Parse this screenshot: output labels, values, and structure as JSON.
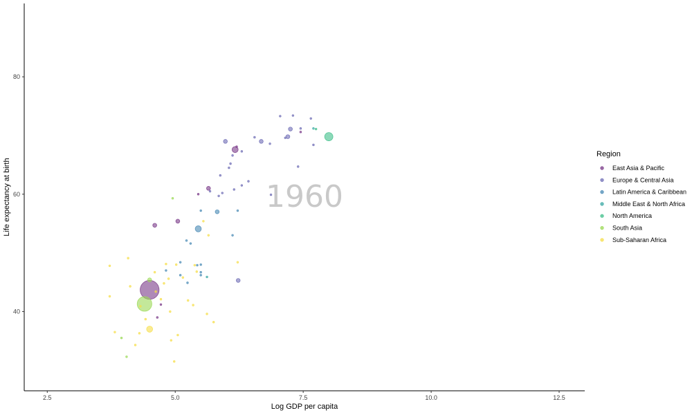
{
  "chart_data": {
    "type": "scatter",
    "title": "",
    "xlabel": "Log GDP per capita",
    "ylabel": "Life expectancy at birth",
    "annotation": "1960",
    "xlim": [
      2.05,
      13.0
    ],
    "ylim": [
      26.5,
      92.5
    ],
    "x_ticks": [
      2.5,
      5.0,
      7.5,
      10.0,
      12.5
    ],
    "x_tick_labels": [
      "2.5",
      "5.0",
      "7.5",
      "10.0",
      "12.5"
    ],
    "y_ticks": [
      40,
      60,
      80
    ],
    "y_tick_labels": [
      "40",
      "60",
      "80"
    ],
    "grid": false,
    "legend_title": "Region",
    "legend_position": "right",
    "series": [
      {
        "name": "East Asia & Pacific",
        "color": "#7a3a88",
        "points": [
          {
            "x": 4.5,
            "y": 43.7,
            "size": 9
          },
          {
            "x": 4.6,
            "y": 54.7,
            "size": 2
          },
          {
            "x": 5.05,
            "y": 55.4,
            "size": 2
          },
          {
            "x": 6.17,
            "y": 67.6,
            "size": 3
          },
          {
            "x": 5.65,
            "y": 61.0,
            "size": 2
          },
          {
            "x": 5.45,
            "y": 60.0,
            "size": 1
          },
          {
            "x": 7.45,
            "y": 70.6,
            "size": 1
          },
          {
            "x": 4.65,
            "y": 39.0,
            "size": 1
          },
          {
            "x": 4.72,
            "y": 41.2,
            "size": 1
          },
          {
            "x": 6.2,
            "y": 68.1,
            "size": 1
          }
        ]
      },
      {
        "name": "Europe & Central Asia",
        "color": "#6f6db5",
        "points": [
          {
            "x": 5.98,
            "y": 69.0,
            "size": 2
          },
          {
            "x": 6.68,
            "y": 69.0,
            "size": 2
          },
          {
            "x": 6.85,
            "y": 68.6,
            "size": 1
          },
          {
            "x": 7.2,
            "y": 69.8,
            "size": 2
          },
          {
            "x": 7.25,
            "y": 71.1,
            "size": 2
          },
          {
            "x": 7.05,
            "y": 73.3,
            "size": 1
          },
          {
            "x": 7.65,
            "y": 72.9,
            "size": 1
          },
          {
            "x": 7.3,
            "y": 73.4,
            "size": 1
          },
          {
            "x": 7.45,
            "y": 71.2,
            "size": 1
          },
          {
            "x": 6.55,
            "y": 69.7,
            "size": 1
          },
          {
            "x": 7.15,
            "y": 69.6,
            "size": 1
          },
          {
            "x": 6.3,
            "y": 67.3,
            "size": 1
          },
          {
            "x": 6.12,
            "y": 66.6,
            "size": 1
          },
          {
            "x": 6.08,
            "y": 65.2,
            "size": 1
          },
          {
            "x": 6.05,
            "y": 64.5,
            "size": 1
          },
          {
            "x": 5.88,
            "y": 63.2,
            "size": 1
          },
          {
            "x": 5.92,
            "y": 60.2,
            "size": 1
          },
          {
            "x": 5.85,
            "y": 59.7,
            "size": 1
          },
          {
            "x": 6.87,
            "y": 59.9,
            "size": 1
          },
          {
            "x": 6.43,
            "y": 62.2,
            "size": 1
          },
          {
            "x": 7.4,
            "y": 64.7,
            "size": 1
          },
          {
            "x": 7.7,
            "y": 68.4,
            "size": 1
          },
          {
            "x": 6.15,
            "y": 60.8,
            "size": 1
          },
          {
            "x": 5.68,
            "y": 60.5,
            "size": 1
          },
          {
            "x": 6.23,
            "y": 45.3,
            "size": 2
          },
          {
            "x": 6.3,
            "y": 61.5,
            "size": 1
          }
        ]
      },
      {
        "name": "Latin America & Caribbean",
        "color": "#4a8bb5",
        "points": [
          {
            "x": 5.45,
            "y": 54.1,
            "size": 3
          },
          {
            "x": 5.82,
            "y": 57.0,
            "size": 2
          },
          {
            "x": 5.5,
            "y": 57.2,
            "size": 1
          },
          {
            "x": 6.22,
            "y": 57.2,
            "size": 1
          },
          {
            "x": 6.12,
            "y": 53.0,
            "size": 1
          },
          {
            "x": 5.1,
            "y": 48.4,
            "size": 1
          },
          {
            "x": 5.5,
            "y": 48.0,
            "size": 1
          },
          {
            "x": 5.43,
            "y": 47.9,
            "size": 1
          },
          {
            "x": 5.5,
            "y": 46.7,
            "size": 1
          },
          {
            "x": 5.5,
            "y": 46.2,
            "size": 1
          },
          {
            "x": 5.24,
            "y": 44.9,
            "size": 1
          },
          {
            "x": 5.1,
            "y": 46.2,
            "size": 1
          },
          {
            "x": 4.82,
            "y": 47.0,
            "size": 1
          },
          {
            "x": 5.22,
            "y": 52.1,
            "size": 1
          },
          {
            "x": 5.3,
            "y": 51.6,
            "size": 1
          }
        ]
      },
      {
        "name": "Middle East & North Africa",
        "color": "#3ba8a4",
        "points": [
          {
            "x": 7.7,
            "y": 71.2,
            "size": 1
          },
          {
            "x": 5.62,
            "y": 45.9,
            "size": 1
          }
        ]
      },
      {
        "name": "North America",
        "color": "#3fbf8a",
        "points": [
          {
            "x": 8.0,
            "y": 69.8,
            "size": 4
          },
          {
            "x": 7.75,
            "y": 71.1,
            "size": 1
          }
        ]
      },
      {
        "name": "South Asia",
        "color": "#9bd956",
        "points": [
          {
            "x": 4.4,
            "y": 41.3,
            "size": 7
          },
          {
            "x": 4.5,
            "y": 45.4,
            "size": 2
          },
          {
            "x": 4.95,
            "y": 59.3,
            "size": 1
          },
          {
            "x": 3.95,
            "y": 35.5,
            "size": 1
          },
          {
            "x": 4.05,
            "y": 32.3,
            "size": 1
          }
        ]
      },
      {
        "name": "Sub-Saharan Africa",
        "color": "#f6de4a",
        "points": [
          {
            "x": 4.5,
            "y": 37.0,
            "size": 3
          },
          {
            "x": 5.35,
            "y": 41.1,
            "size": 1
          },
          {
            "x": 6.22,
            "y": 48.4,
            "size": 1
          },
          {
            "x": 5.65,
            "y": 53.0,
            "size": 1
          },
          {
            "x": 3.72,
            "y": 47.8,
            "size": 1
          },
          {
            "x": 3.72,
            "y": 42.6,
            "size": 1
          },
          {
            "x": 3.82,
            "y": 36.5,
            "size": 1
          },
          {
            "x": 4.08,
            "y": 49.1,
            "size": 1
          },
          {
            "x": 4.12,
            "y": 44.3,
            "size": 1
          },
          {
            "x": 4.22,
            "y": 34.3,
            "size": 1
          },
          {
            "x": 4.3,
            "y": 36.3,
            "size": 1
          },
          {
            "x": 4.42,
            "y": 38.7,
            "size": 1
          },
          {
            "x": 4.6,
            "y": 46.7,
            "size": 1
          },
          {
            "x": 4.62,
            "y": 43.4,
            "size": 1
          },
          {
            "x": 4.72,
            "y": 42.1,
            "size": 1
          },
          {
            "x": 4.82,
            "y": 48.1,
            "size": 1
          },
          {
            "x": 4.87,
            "y": 45.6,
            "size": 1
          },
          {
            "x": 4.9,
            "y": 40.0,
            "size": 1
          },
          {
            "x": 4.92,
            "y": 35.1,
            "size": 1
          },
          {
            "x": 4.98,
            "y": 31.5,
            "size": 1
          },
          {
            "x": 5.02,
            "y": 48.0,
            "size": 1
          },
          {
            "x": 5.05,
            "y": 36.0,
            "size": 1
          },
          {
            "x": 5.15,
            "y": 45.8,
            "size": 1
          },
          {
            "x": 5.25,
            "y": 41.9,
            "size": 1
          },
          {
            "x": 5.38,
            "y": 47.9,
            "size": 1
          },
          {
            "x": 5.42,
            "y": 46.8,
            "size": 1
          },
          {
            "x": 5.55,
            "y": 55.4,
            "size": 1
          },
          {
            "x": 5.62,
            "y": 39.6,
            "size": 1
          },
          {
            "x": 5.75,
            "y": 38.2,
            "size": 1
          },
          {
            "x": 4.32,
            "y": 40.9,
            "size": 1
          },
          {
            "x": 4.78,
            "y": 44.8,
            "size": 1
          }
        ]
      }
    ]
  }
}
